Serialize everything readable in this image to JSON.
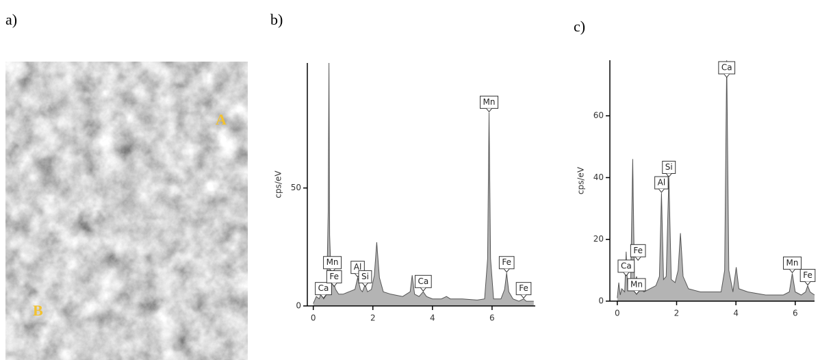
{
  "panel_labels": [
    "a)",
    "b)",
    "c)"
  ],
  "image_labels": [
    "A",
    "B"
  ],
  "chart_data": [
    {
      "type": "area",
      "ylabel": "cps/eV",
      "color": "#b4b4b4",
      "xlim": [
        -0.2,
        7.45
      ],
      "ylim": [
        0,
        103
      ],
      "xticks": [
        0,
        2,
        4,
        6
      ],
      "yticks": [
        0,
        50
      ],
      "x": [
        0,
        0.1,
        0.2,
        0.28,
        0.35,
        0.45,
        0.5,
        0.525,
        0.55,
        0.6,
        0.65,
        0.7,
        0.75,
        0.85,
        1.0,
        1.2,
        1.4,
        1.49,
        1.58,
        1.65,
        1.74,
        1.82,
        1.95,
        2.05,
        2.13,
        2.22,
        2.35,
        2.6,
        3.0,
        3.25,
        3.32,
        3.4,
        3.55,
        3.69,
        3.8,
        4.0,
        4.3,
        4.47,
        4.6,
        5.0,
        5.5,
        5.75,
        5.85,
        5.9,
        5.95,
        6.05,
        6.3,
        6.42,
        6.49,
        6.56,
        6.7,
        6.9,
        7.06,
        7.15,
        7.4
      ],
      "values": [
        1,
        4,
        3,
        6,
        3,
        5,
        40,
        103,
        30,
        12,
        13,
        9,
        7,
        5,
        5,
        6,
        7,
        12,
        7,
        6,
        9,
        6,
        7,
        13,
        27,
        12,
        6,
        5,
        4,
        6,
        13,
        5,
        4,
        6,
        4,
        3,
        3,
        4,
        3,
        3,
        2.5,
        3,
        20,
        82,
        20,
        3,
        3,
        7,
        14,
        6,
        3,
        2,
        3,
        2,
        2
      ],
      "annotations": [
        {
          "text": "Ca",
          "x": 0.34,
          "y": 3
        },
        {
          "text": "Mn",
          "x": 0.64,
          "y": 14
        },
        {
          "text": "Fe",
          "x": 0.7,
          "y": 8
        },
        {
          "text": "Al",
          "x": 1.49,
          "y": 12
        },
        {
          "text": "Si",
          "x": 1.74,
          "y": 8
        },
        {
          "text": "Ca",
          "x": 3.69,
          "y": 6
        },
        {
          "text": "Mn",
          "x": 5.9,
          "y": 82
        },
        {
          "text": "Fe",
          "x": 6.49,
          "y": 14
        },
        {
          "text": "Fe",
          "x": 7.06,
          "y": 3
        }
      ]
    },
    {
      "type": "area",
      "ylabel": "cps/eV",
      "color": "#b4b4b4",
      "xlim": [
        -0.25,
        6.65
      ],
      "ylim": [
        0,
        78
      ],
      "xticks": [
        0,
        2,
        4,
        6
      ],
      "yticks": [
        0,
        20,
        40,
        60
      ],
      "x": [
        0,
        0.05,
        0.1,
        0.15,
        0.25,
        0.3,
        0.35,
        0.45,
        0.52,
        0.58,
        0.65,
        0.7,
        0.78,
        0.9,
        1.1,
        1.3,
        1.42,
        1.49,
        1.56,
        1.65,
        1.74,
        1.82,
        1.95,
        2.05,
        2.13,
        2.22,
        2.4,
        2.8,
        3.2,
        3.5,
        3.62,
        3.69,
        3.76,
        3.9,
        4.01,
        4.1,
        4.4,
        5.0,
        5.6,
        5.8,
        5.9,
        6.0,
        6.2,
        6.35,
        6.42,
        6.5,
        6.65
      ],
      "values": [
        1,
        6,
        2,
        4,
        3,
        16,
        4,
        5,
        46,
        6,
        8,
        5,
        4,
        3,
        4,
        5,
        8,
        35,
        7,
        8,
        40,
        7,
        6,
        10,
        22,
        8,
        4,
        3,
        3,
        3,
        10,
        78,
        10,
        3,
        11,
        4,
        3,
        2,
        2,
        3,
        9,
        3,
        2,
        3,
        5,
        3,
        2
      ],
      "annotations": [
        {
          "text": "Ca",
          "x": 0.3,
          "y": 8
        },
        {
          "text": "Fe",
          "x": 0.7,
          "y": 13
        },
        {
          "text": "Mn",
          "x": 0.65,
          "y": 2
        },
        {
          "text": "Al",
          "x": 1.49,
          "y": 35
        },
        {
          "text": "Si",
          "x": 1.74,
          "y": 40
        },
        {
          "text": "Ca",
          "x": 3.69,
          "y": 78
        },
        {
          "text": "Mn",
          "x": 5.9,
          "y": 9
        },
        {
          "text": "Fe",
          "x": 6.42,
          "y": 5
        }
      ]
    }
  ]
}
